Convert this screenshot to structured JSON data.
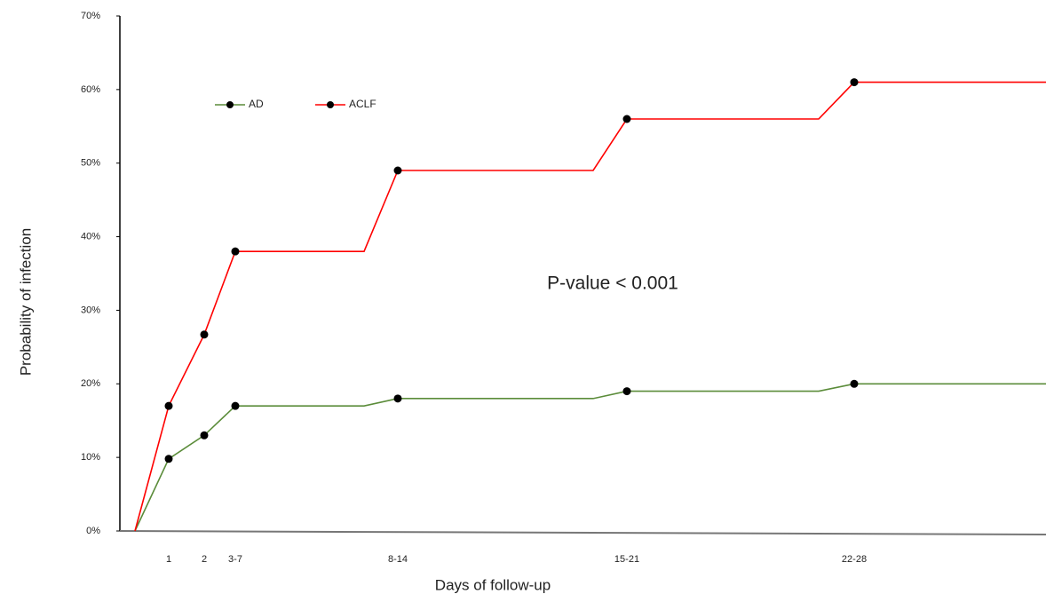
{
  "chart_data": {
    "type": "line",
    "xlabel": "Days of follow-up",
    "ylabel": "Probability of infection",
    "annotation": "P-value < 0.001",
    "categories": [
      null,
      "1",
      "2",
      "3-7",
      null,
      "8-14",
      null,
      "15-21",
      null,
      "22-28",
      null
    ],
    "series": [
      {
        "name": "AD",
        "color": "#5b8c3a",
        "values": [
          0,
          9.8,
          13,
          17,
          17,
          18,
          18,
          19,
          19,
          20,
          20
        ]
      },
      {
        "name": "ACLF",
        "color": "#ff0000",
        "values": [
          0,
          17,
          26.7,
          38,
          38,
          49,
          49,
          56,
          56,
          61,
          61
        ]
      }
    ],
    "ylim": [
      0,
      70
    ],
    "yticks": [
      {
        "value": 0,
        "label": "0%"
      },
      {
        "value": 10,
        "label": "10%"
      },
      {
        "value": 20,
        "label": "20%"
      },
      {
        "value": 30,
        "label": "30%"
      },
      {
        "value": 40,
        "label": "40%"
      },
      {
        "value": 50,
        "label": "50%"
      },
      {
        "value": 60,
        "label": "60%"
      },
      {
        "value": 70,
        "label": "70%"
      }
    ],
    "legend": "upper-left",
    "grid": false
  }
}
